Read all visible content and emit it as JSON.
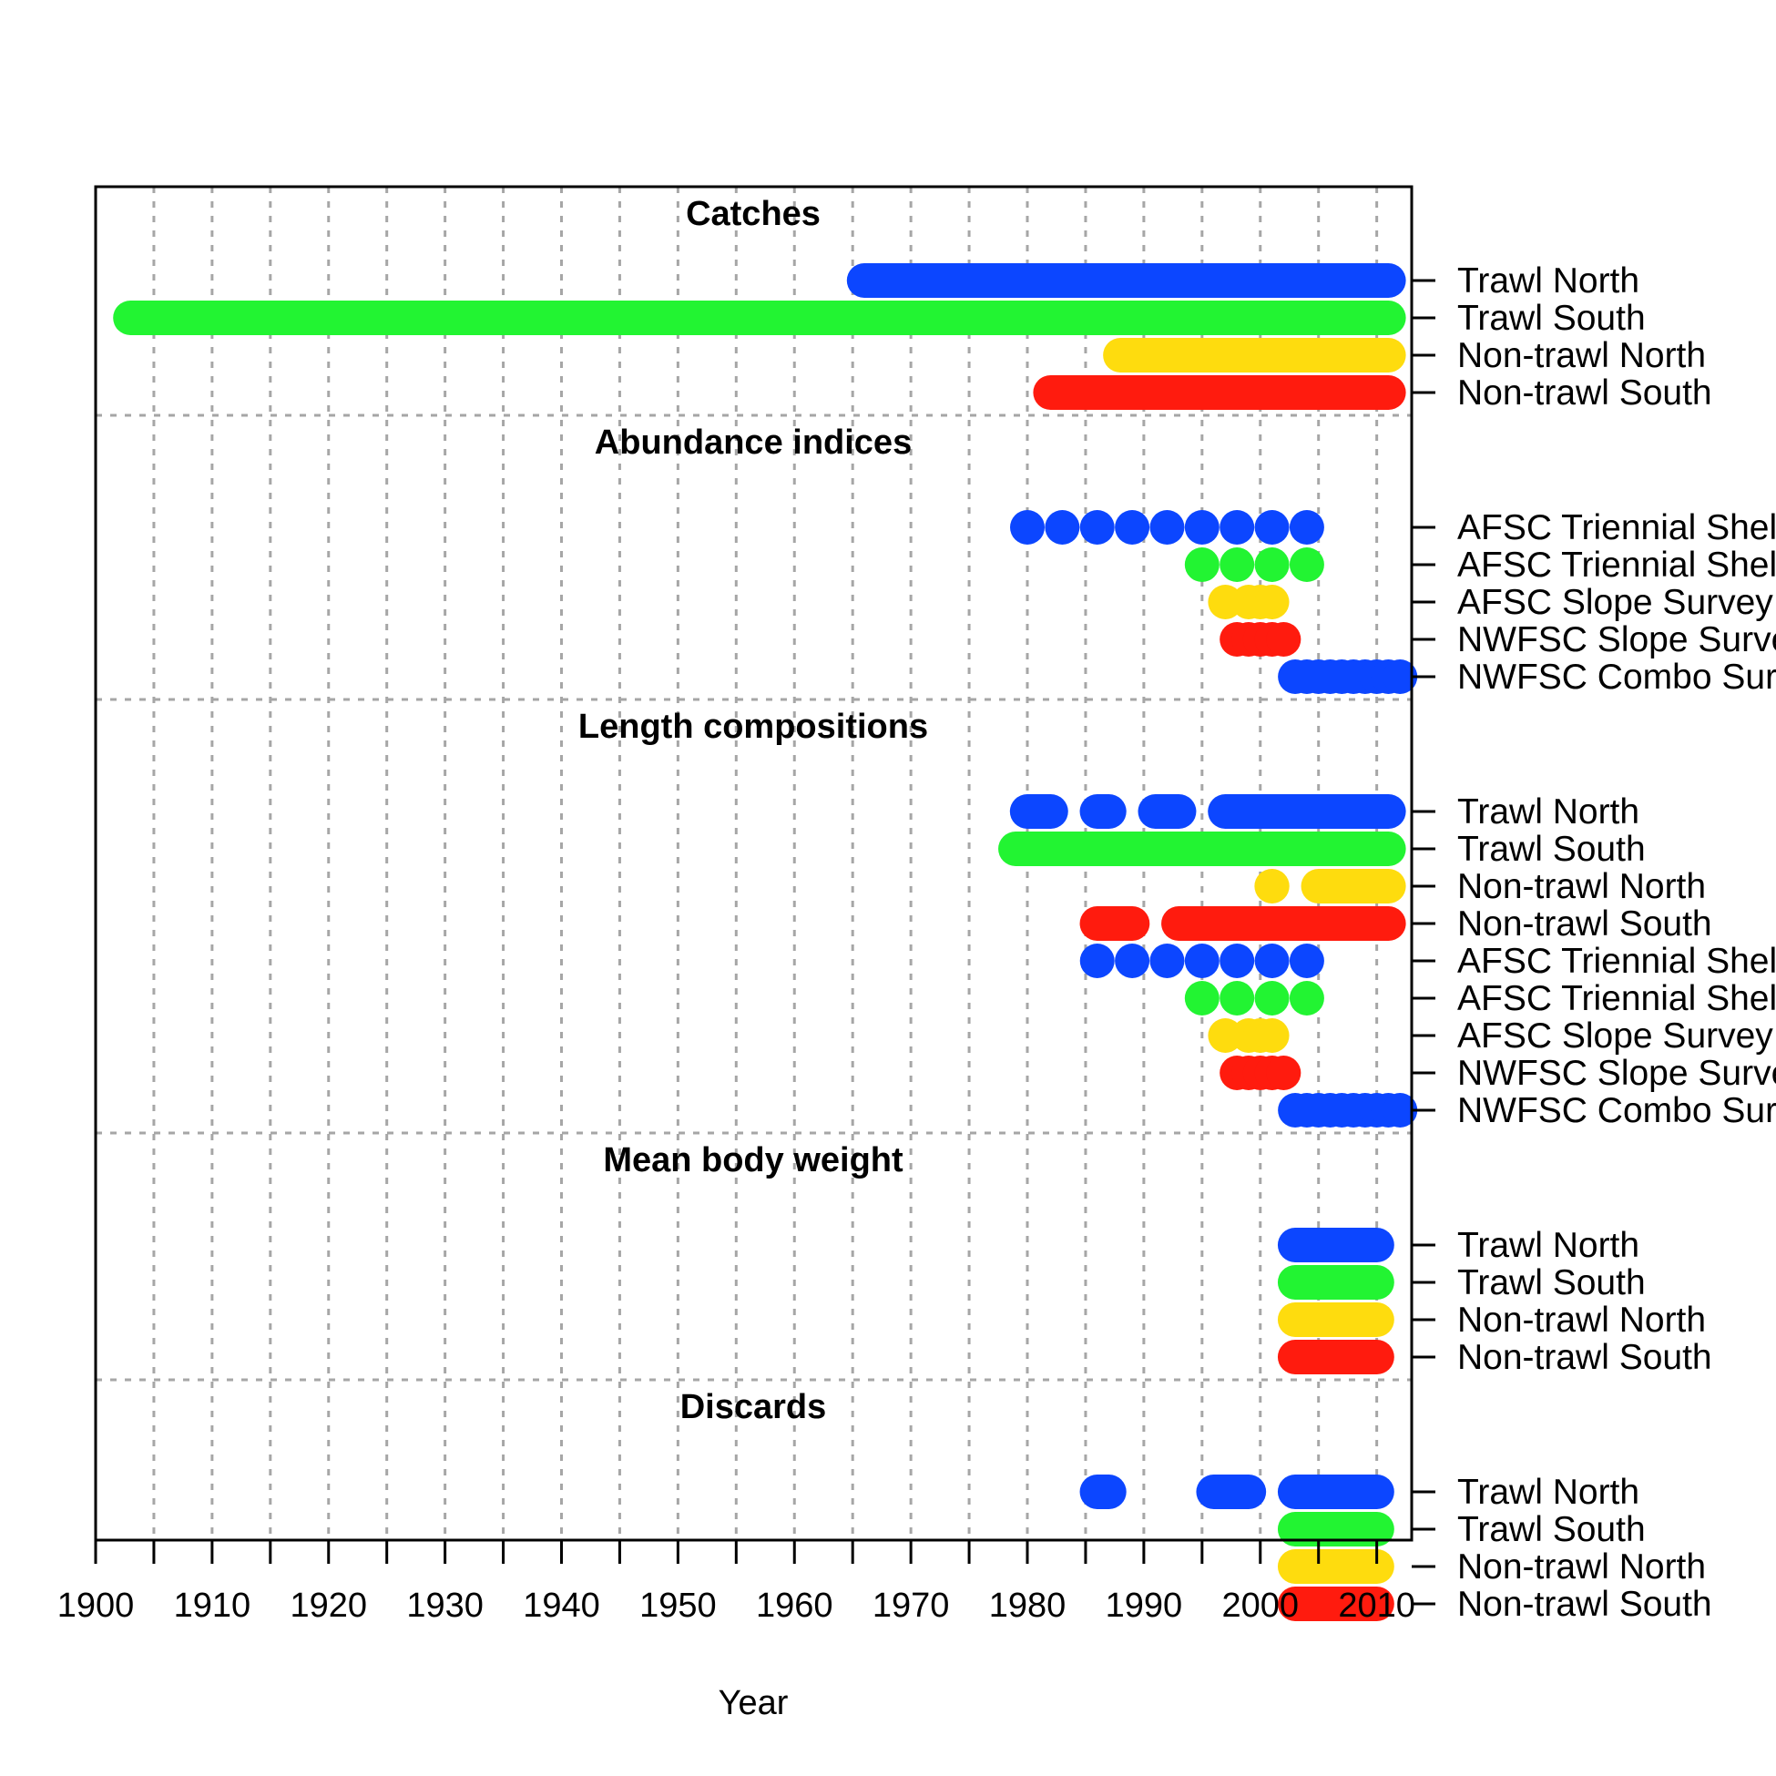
{
  "chart_data": {
    "type": "timeline",
    "xlabel": "Year",
    "xlim": [
      1900,
      2013
    ],
    "x_ticks": [
      1900,
      1910,
      1920,
      1930,
      1940,
      1950,
      1960,
      1970,
      1980,
      1990,
      2000,
      2010
    ],
    "x_minor_ticks": [
      1905,
      1915,
      1925,
      1935,
      1945,
      1955,
      1965,
      1975,
      1985,
      1995,
      2005
    ],
    "vertical_grid_years": [
      1905,
      1910,
      1915,
      1920,
      1925,
      1930,
      1935,
      1940,
      1945,
      1950,
      1955,
      1960,
      1965,
      1970,
      1975,
      1980,
      1985,
      1990,
      1995,
      2000,
      2005,
      2010
    ],
    "grid": "dashed",
    "colors": {
      "blue": "#0c46ff",
      "green": "#22f432",
      "yellow": "#fedc0e",
      "red": "#ff1b0e"
    },
    "sections": [
      {
        "title": "Catches",
        "rows": [
          {
            "label": "Trawl North",
            "color": "#0c46ff",
            "years": [
              [
                1965,
                2012
              ]
            ]
          },
          {
            "label": "Trawl South",
            "color": "#22f432",
            "years": [
              [
                1902,
                2012
              ]
            ]
          },
          {
            "label": "Non-trawl North",
            "color": "#fedc0e",
            "years": [
              [
                1987,
                2012
              ]
            ]
          },
          {
            "label": "Non-trawl South",
            "color": "#ff1b0e",
            "years": [
              [
                1981,
                2012
              ]
            ]
          }
        ]
      },
      {
        "title": "Abundance indices",
        "rows": [
          {
            "label": "AFSC Triennial Shelf Survey North",
            "color": "#0c46ff",
            "years": [
              1980,
              1983,
              1986,
              1989,
              1992,
              1995,
              1998,
              2001,
              2004
            ]
          },
          {
            "label": "AFSC Triennial Shelf Survey South",
            "color": "#22f432",
            "years": [
              1995,
              1998,
              2001,
              2004
            ]
          },
          {
            "label": "AFSC Slope Survey",
            "color": "#fedc0e",
            "years": [
              1997,
              1999,
              2000,
              2001
            ]
          },
          {
            "label": "NWFSC Slope Survey",
            "color": "#ff1b0e",
            "years": [
              1998,
              1999,
              2000,
              2001,
              2002
            ]
          },
          {
            "label": "NWFSC Combo Survey",
            "color": "#0c46ff",
            "years": [
              2003,
              2004,
              2005,
              2006,
              2007,
              2008,
              2009,
              2010,
              2011,
              2012
            ]
          }
        ]
      },
      {
        "title": "Length compositions",
        "rows": [
          {
            "label": "Trawl North",
            "color": "#0c46ff",
            "years": [
              [
                1979,
                1983
              ],
              [
                1985,
                1988
              ],
              [
                1990,
                1994
              ],
              [
                1996,
                2012
              ]
            ]
          },
          {
            "label": "Trawl South",
            "color": "#22f432",
            "years": [
              [
                1978,
                2012
              ]
            ]
          },
          {
            "label": "Non-trawl North",
            "color": "#fedc0e",
            "years": [
              [
                2000,
                2002
              ],
              [
                2004,
                2012
              ]
            ]
          },
          {
            "label": "Non-trawl South",
            "color": "#ff1b0e",
            "years": [
              [
                1985,
                1990
              ],
              [
                1992,
                2012
              ]
            ]
          },
          {
            "label": "AFSC Triennial Shelf Survey North",
            "color": "#0c46ff",
            "years": [
              1986,
              1989,
              1992,
              1995,
              1998,
              2001,
              2004
            ]
          },
          {
            "label": "AFSC Triennial Shelf Survey South",
            "color": "#22f432",
            "years": [
              1995,
              1998,
              2001,
              2004
            ]
          },
          {
            "label": "AFSC Slope Survey",
            "color": "#fedc0e",
            "years": [
              1997,
              1999,
              2000,
              2001
            ]
          },
          {
            "label": "NWFSC Slope Survey",
            "color": "#ff1b0e",
            "years": [
              1998,
              1999,
              2000,
              2001,
              2002
            ]
          },
          {
            "label": "NWFSC Combo Survey",
            "color": "#0c46ff",
            "years": [
              2003,
              2004,
              2005,
              2006,
              2007,
              2008,
              2009,
              2010,
              2011,
              2012
            ]
          }
        ]
      },
      {
        "title": "Mean body weight",
        "rows": [
          {
            "label": "Trawl North",
            "color": "#0c46ff",
            "years": [
              [
                2002,
                2011
              ]
            ]
          },
          {
            "label": "Trawl South",
            "color": "#22f432",
            "years": [
              [
                2002,
                2011
              ]
            ]
          },
          {
            "label": "Non-trawl North",
            "color": "#fedc0e",
            "years": [
              [
                2002,
                2011
              ]
            ]
          },
          {
            "label": "Non-trawl South",
            "color": "#ff1b0e",
            "years": [
              [
                2002,
                2011
              ]
            ]
          }
        ]
      },
      {
        "title": "Discards",
        "rows": [
          {
            "label": "Trawl North",
            "color": "#0c46ff",
            "years": [
              [
                1985,
                1988
              ],
              [
                1995,
                2000
              ],
              [
                2002,
                2011
              ]
            ]
          },
          {
            "label": "Trawl South",
            "color": "#22f432",
            "years": [
              [
                2002,
                2011
              ]
            ]
          },
          {
            "label": "Non-trawl North",
            "color": "#fedc0e",
            "years": [
              [
                2002,
                2011
              ]
            ]
          },
          {
            "label": "Non-trawl South",
            "color": "#ff1b0e",
            "years": [
              [
                2002,
                2011
              ]
            ]
          }
        ]
      }
    ]
  }
}
